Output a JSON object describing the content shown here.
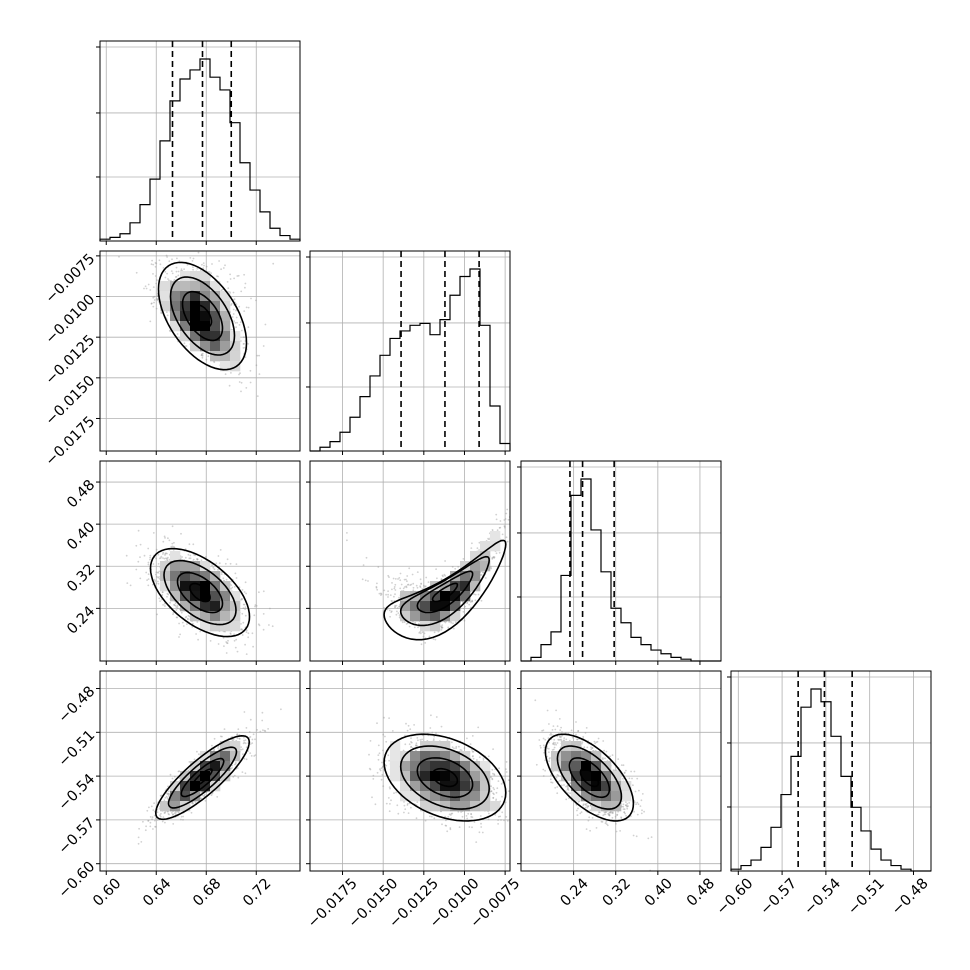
{
  "chart_data": {
    "type": "corner",
    "parameters": 4,
    "grid": true,
    "quantile_line_style": "dashed",
    "colors": {
      "line": "#000000",
      "points": "#9a9a9a",
      "grid": "#b0b0b0",
      "density_dark": "#000000",
      "density_light": "#ffffff"
    },
    "axes": [
      {
        "range": [
          0.595,
          0.755
        ],
        "ticks": [
          0.6,
          0.64,
          0.68,
          0.72
        ],
        "tick_labels": [
          "0.60",
          "0.64",
          "0.68",
          "0.72"
        ]
      },
      {
        "range": [
          -0.0195,
          -0.0072
        ],
        "ticks": [
          -0.0175,
          -0.015,
          -0.0125,
          -0.01,
          -0.0075
        ],
        "tick_labels": [
          "−0.0175",
          "−0.0150",
          "−0.0125",
          "−0.0100",
          "−0.0075"
        ]
      },
      {
        "range": [
          0.14,
          0.52
        ],
        "ticks": [
          0.24,
          0.32,
          0.4,
          0.48
        ],
        "tick_labels": [
          "0.24",
          "0.32",
          "0.40",
          "0.48"
        ]
      },
      {
        "range": [
          -0.605,
          -0.468
        ],
        "ticks": [
          -0.6,
          -0.57,
          -0.54,
          -0.51,
          -0.48
        ],
        "tick_labels": [
          "−0.60",
          "−0.57",
          "−0.54",
          "−0.51",
          "−0.48"
        ]
      }
    ],
    "histograms": [
      {
        "bin_start": 0.595,
        "bin_width": 0.008,
        "counts": [
          0.01,
          0.02,
          0.04,
          0.1,
          0.2,
          0.34,
          0.55,
          0.77,
          0.89,
          0.94,
          1.0,
          0.9,
          0.83,
          0.65,
          0.43,
          0.28,
          0.16,
          0.07,
          0.03,
          0.01
        ],
        "quantiles": [
          0.653,
          0.677,
          0.7
        ]
      },
      {
        "bin_start": -0.0195,
        "bin_width": 0.000615,
        "counts": [
          0.0,
          0.02,
          0.05,
          0.1,
          0.18,
          0.29,
          0.4,
          0.51,
          0.6,
          0.64,
          0.67,
          0.68,
          0.62,
          0.7,
          0.83,
          0.93,
          0.97,
          0.67,
          0.24,
          0.04
        ],
        "quantiles": [
          -0.0139,
          -0.0112,
          -0.0091
        ]
      },
      {
        "bin_start": 0.14,
        "bin_width": 0.019,
        "counts": [
          0.0,
          0.02,
          0.09,
          0.16,
          0.47,
          0.91,
          1.0,
          0.72,
          0.49,
          0.29,
          0.21,
          0.13,
          0.09,
          0.06,
          0.04,
          0.02,
          0.01,
          0.0,
          0.0,
          0.0
        ],
        "quantiles": [
          0.233,
          0.257,
          0.317
        ]
      },
      {
        "bin_start": -0.605,
        "bin_width": 0.00685,
        "counts": [
          0.01,
          0.03,
          0.06,
          0.13,
          0.24,
          0.42,
          0.63,
          0.9,
          1.0,
          0.93,
          0.74,
          0.52,
          0.35,
          0.22,
          0.12,
          0.06,
          0.03,
          0.01,
          0.0,
          0.0
        ],
        "quantiles": [
          -0.559,
          -0.541,
          -0.522
        ]
      }
    ],
    "pairs": [
      {
        "x_param": 0,
        "y_param": 1,
        "mean": [
          0.677,
          -0.0112
        ],
        "sd": [
          0.016,
          0.0015
        ],
        "rho": -0.5,
        "shape": "banana-upper-left"
      },
      {
        "x_param": 0,
        "y_param": 2,
        "mean": [
          0.675,
          0.27
        ],
        "sd": [
          0.018,
          0.038
        ],
        "rho": -0.55
      },
      {
        "x_param": 1,
        "y_param": 2,
        "mean": [
          -0.0112,
          0.27
        ],
        "sd": [
          0.0017,
          0.038
        ],
        "rho": 0.8,
        "shape": "curved-upward"
      },
      {
        "x_param": 0,
        "y_param": 3,
        "mean": [
          0.677,
          -0.541
        ],
        "sd": [
          0.017,
          0.013
        ],
        "rho": 0.85
      },
      {
        "x_param": 1,
        "y_param": 3,
        "mean": [
          -0.0112,
          -0.541
        ],
        "sd": [
          0.0017,
          0.0135
        ],
        "rho": -0.35
      },
      {
        "x_param": 2,
        "y_param": 3,
        "mean": [
          0.27,
          -0.541
        ],
        "sd": [
          0.038,
          0.0135
        ],
        "rho": -0.6
      }
    ]
  }
}
